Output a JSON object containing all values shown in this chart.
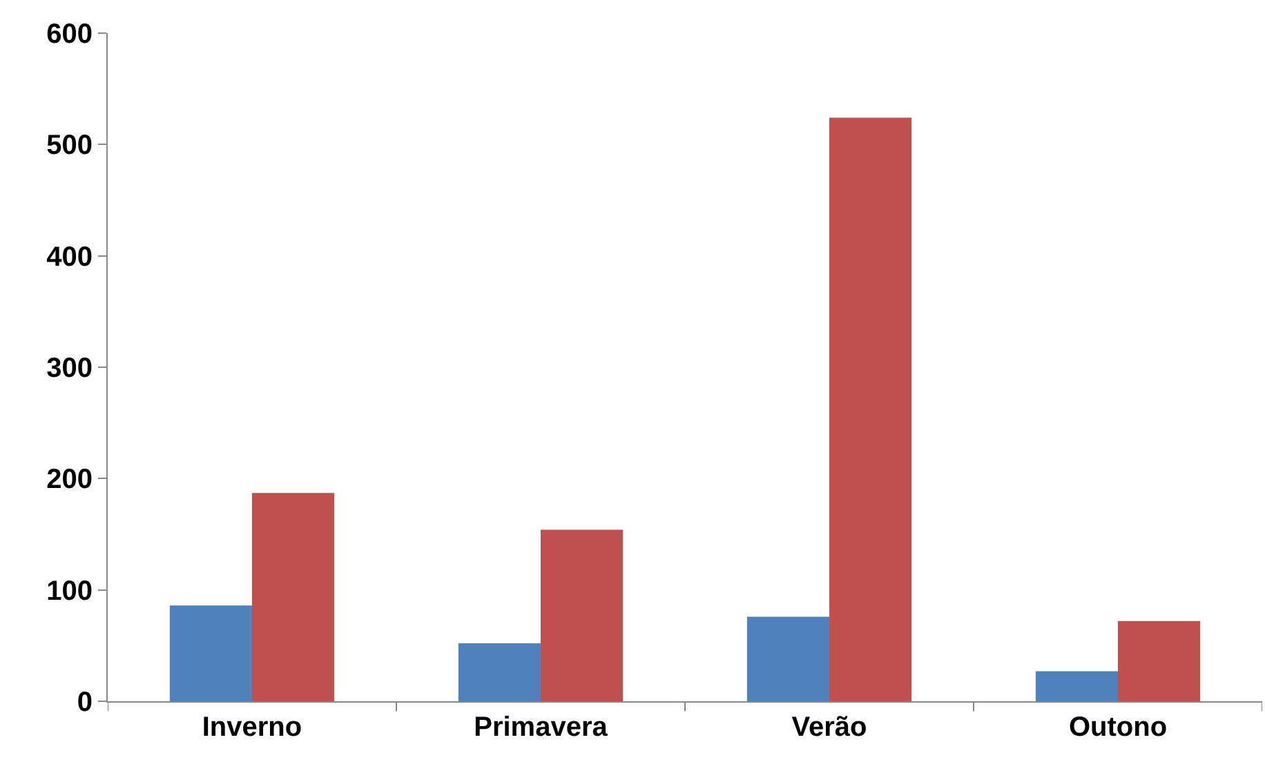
{
  "chart_data": {
    "type": "bar",
    "categories": [
      "Inverno",
      "Primavera",
      "Verão",
      "Outono"
    ],
    "series": [
      {
        "color": "#4f81bd",
        "values": [
          86,
          52,
          76,
          27
        ]
      },
      {
        "color": "#c0504d",
        "values": [
          187,
          154,
          524,
          72
        ]
      }
    ],
    "ylim": [
      0,
      600
    ],
    "yticks": [
      0,
      100,
      200,
      300,
      400,
      500,
      600
    ],
    "grid": false
  }
}
